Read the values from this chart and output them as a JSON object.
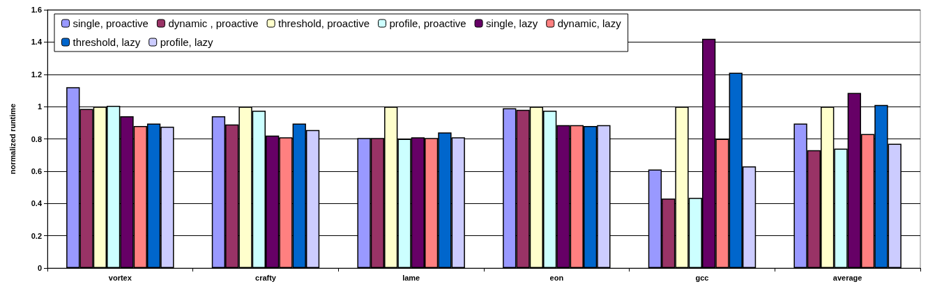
{
  "chart_data": {
    "type": "bar",
    "ylabel": "normalized runtime",
    "categories": [
      "vortex",
      "crafty",
      "lame",
      "eon",
      "gcc",
      "average"
    ],
    "series": [
      {
        "name": "single, proactive",
        "color": "#9999ff",
        "values": [
          1.12,
          0.94,
          0.805,
          0.99,
          0.61,
          0.895
        ]
      },
      {
        "name": "dynamic , proactive",
        "color": "#993366",
        "values": [
          0.985,
          0.89,
          0.805,
          0.98,
          0.43,
          0.73
        ]
      },
      {
        "name": "threshold, proactive",
        "color": "#ffffcc",
        "values": [
          1.0,
          1.0,
          1.0,
          1.0,
          1.0,
          1.0
        ]
      },
      {
        "name": "profile, proactive",
        "color": "#ccffff",
        "values": [
          1.005,
          0.975,
          0.8,
          0.975,
          0.435,
          0.74
        ]
      },
      {
        "name": "single, lazy",
        "color": "#660066",
        "values": [
          0.94,
          0.82,
          0.81,
          0.885,
          1.42,
          1.085
        ]
      },
      {
        "name": "dynamic, lazy",
        "color": "#ff8080",
        "values": [
          0.88,
          0.81,
          0.805,
          0.885,
          0.8,
          0.83
        ]
      },
      {
        "name": "threshold, lazy",
        "color": "#0066cc",
        "values": [
          0.895,
          0.895,
          0.84,
          0.88,
          1.21,
          1.01
        ]
      },
      {
        "name": "profile, lazy",
        "color": "#ccccff",
        "values": [
          0.875,
          0.855,
          0.81,
          0.885,
          0.63,
          0.77
        ]
      }
    ],
    "ylim": [
      0,
      1.6
    ],
    "yticks": [
      0,
      0.2,
      0.4,
      0.6,
      0.8,
      1,
      1.2,
      1.4,
      1.6
    ],
    "grid": "y",
    "legend": "top left"
  }
}
